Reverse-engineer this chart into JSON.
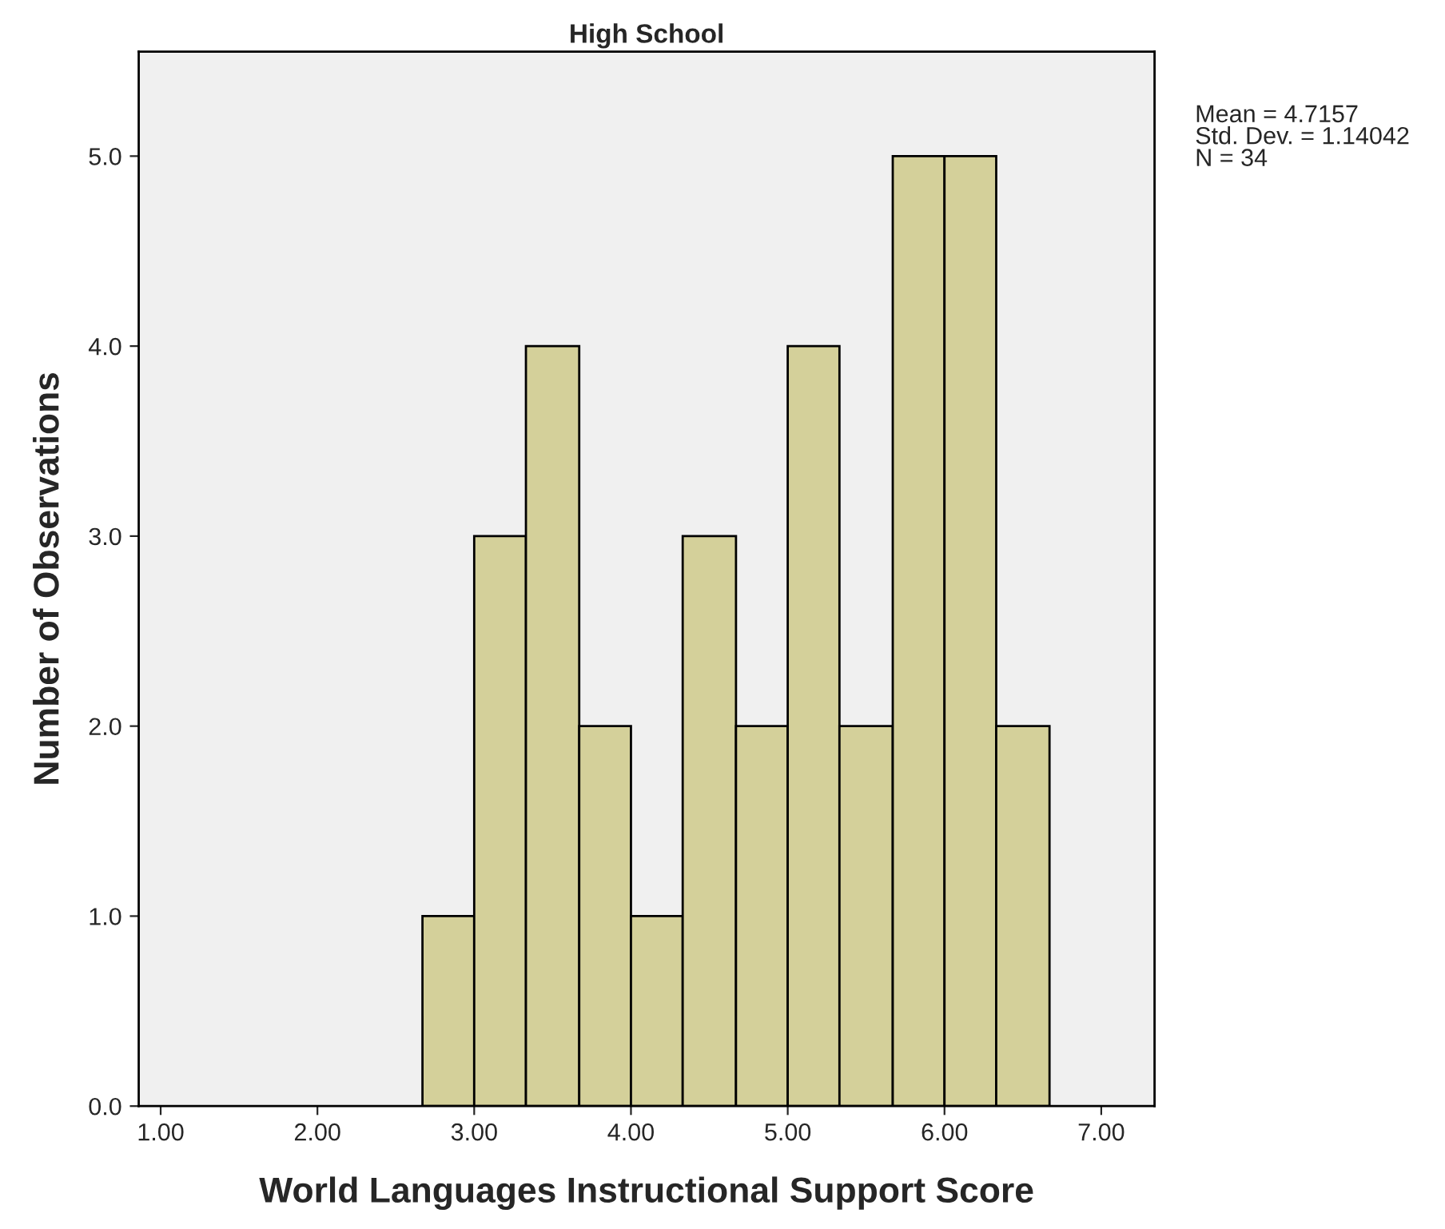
{
  "chart_data": {
    "type": "histogram",
    "title": "High School",
    "xlabel": "World Languages Instructional Support Score",
    "ylabel": "Number of Observations",
    "bins": [
      2.67,
      3.0,
      3.33,
      3.67,
      4.0,
      4.33,
      4.67,
      5.0,
      5.33,
      5.67,
      6.0,
      6.33,
      6.67
    ],
    "values": [
      1,
      3,
      4,
      2,
      1,
      3,
      2,
      4,
      2,
      5,
      5,
      2
    ],
    "color": "#d4d09a",
    "xlim": [
      0.86,
      7.34
    ],
    "ylim": [
      0,
      5.55
    ],
    "xticks": [
      {
        "value": 1,
        "label": "1.00"
      },
      {
        "value": 2,
        "label": "2.00"
      },
      {
        "value": 3,
        "label": "3.00"
      },
      {
        "value": 4,
        "label": "4.00"
      },
      {
        "value": 5,
        "label": "5.00"
      },
      {
        "value": 6,
        "label": "6.00"
      },
      {
        "value": 7,
        "label": "7.00"
      }
    ],
    "yticks": [
      {
        "value": 0,
        "label": "0.0"
      },
      {
        "value": 1,
        "label": "1.0"
      },
      {
        "value": 2,
        "label": "2.0"
      },
      {
        "value": 3,
        "label": "3.0"
      },
      {
        "value": 4,
        "label": "4.0"
      },
      {
        "value": 5,
        "label": "5.0"
      }
    ],
    "annotations": [
      "Mean = 4.7157\nStd. Dev. = 1.14042\nN = 34"
    ],
    "grid": false
  }
}
